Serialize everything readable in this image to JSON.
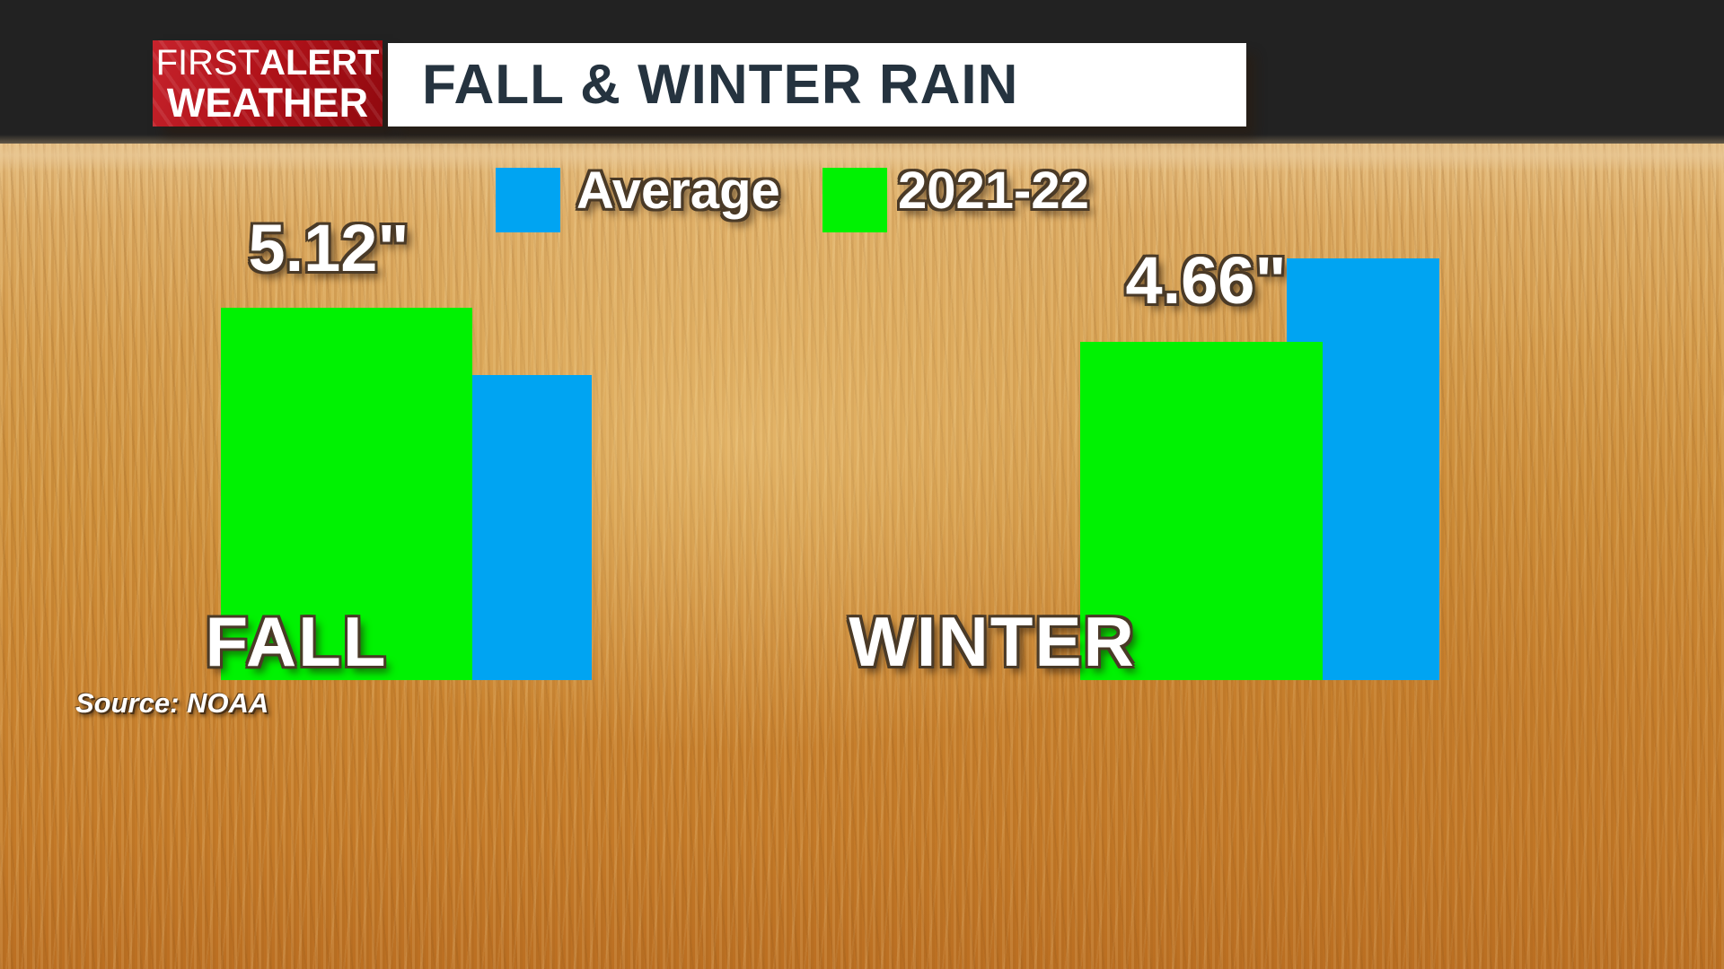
{
  "logo": {
    "line1_part1": "FIRST",
    "line1_part2": "ALERT",
    "line2": "WEATHER"
  },
  "header": {
    "title": "FALL & WINTER RAIN"
  },
  "legend": {
    "items": [
      {
        "label": "Average",
        "color": "#00a4f2"
      },
      {
        "label": "2021-22",
        "color": "#00f202"
      }
    ]
  },
  "groups": [
    {
      "category": "FALL",
      "value_label": "5.12\""
    },
    {
      "category": "WINTER",
      "value_label": "4.66\""
    }
  ],
  "source": "Source: NOAA",
  "colors": {
    "average_blue": "#00a4f2",
    "season_green": "#00f202",
    "title_text": "#25333f",
    "logo_red": "#b01219",
    "title_bar_bg": "#ffffff"
  },
  "chart_data": {
    "type": "bar",
    "title": "FALL & WINTER RAIN",
    "categories": [
      "FALL",
      "WINTER"
    ],
    "series": [
      {
        "name": "Average",
        "color": "#00a4f2",
        "values": [
          4.2,
          5.8
        ],
        "values_estimated_from_bar_heights": true
      },
      {
        "name": "2021-22",
        "color": "#00f202",
        "values": [
          5.12,
          4.66
        ],
        "data_labels": [
          "5.12\"",
          "4.66\""
        ]
      }
    ],
    "unit": "inches",
    "ylim": [
      0,
      6
    ],
    "grid": false,
    "legend_position": "top-center",
    "source": "Source: NOAA"
  }
}
